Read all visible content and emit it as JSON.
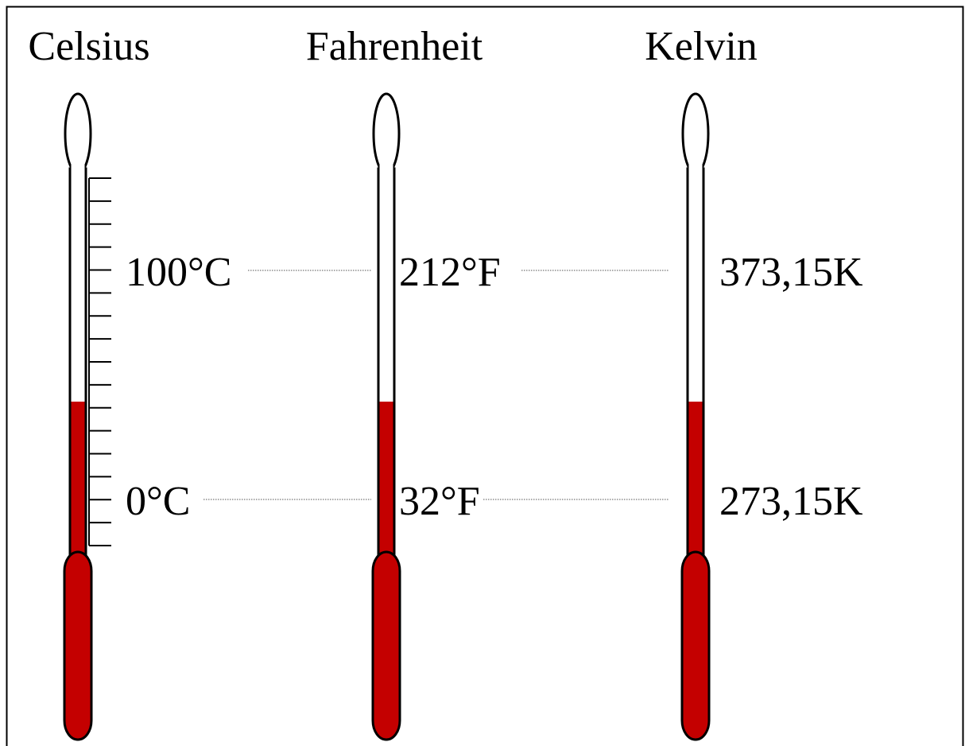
{
  "thermometers": [
    {
      "title": "Celsius",
      "labels": [
        "100°C",
        "0°C"
      ]
    },
    {
      "title": "Fahrenheit",
      "labels": [
        "212°F",
        "32°F"
      ]
    },
    {
      "title": "Kelvin",
      "labels": [
        "373,15K",
        "273,15K"
      ]
    }
  ]
}
